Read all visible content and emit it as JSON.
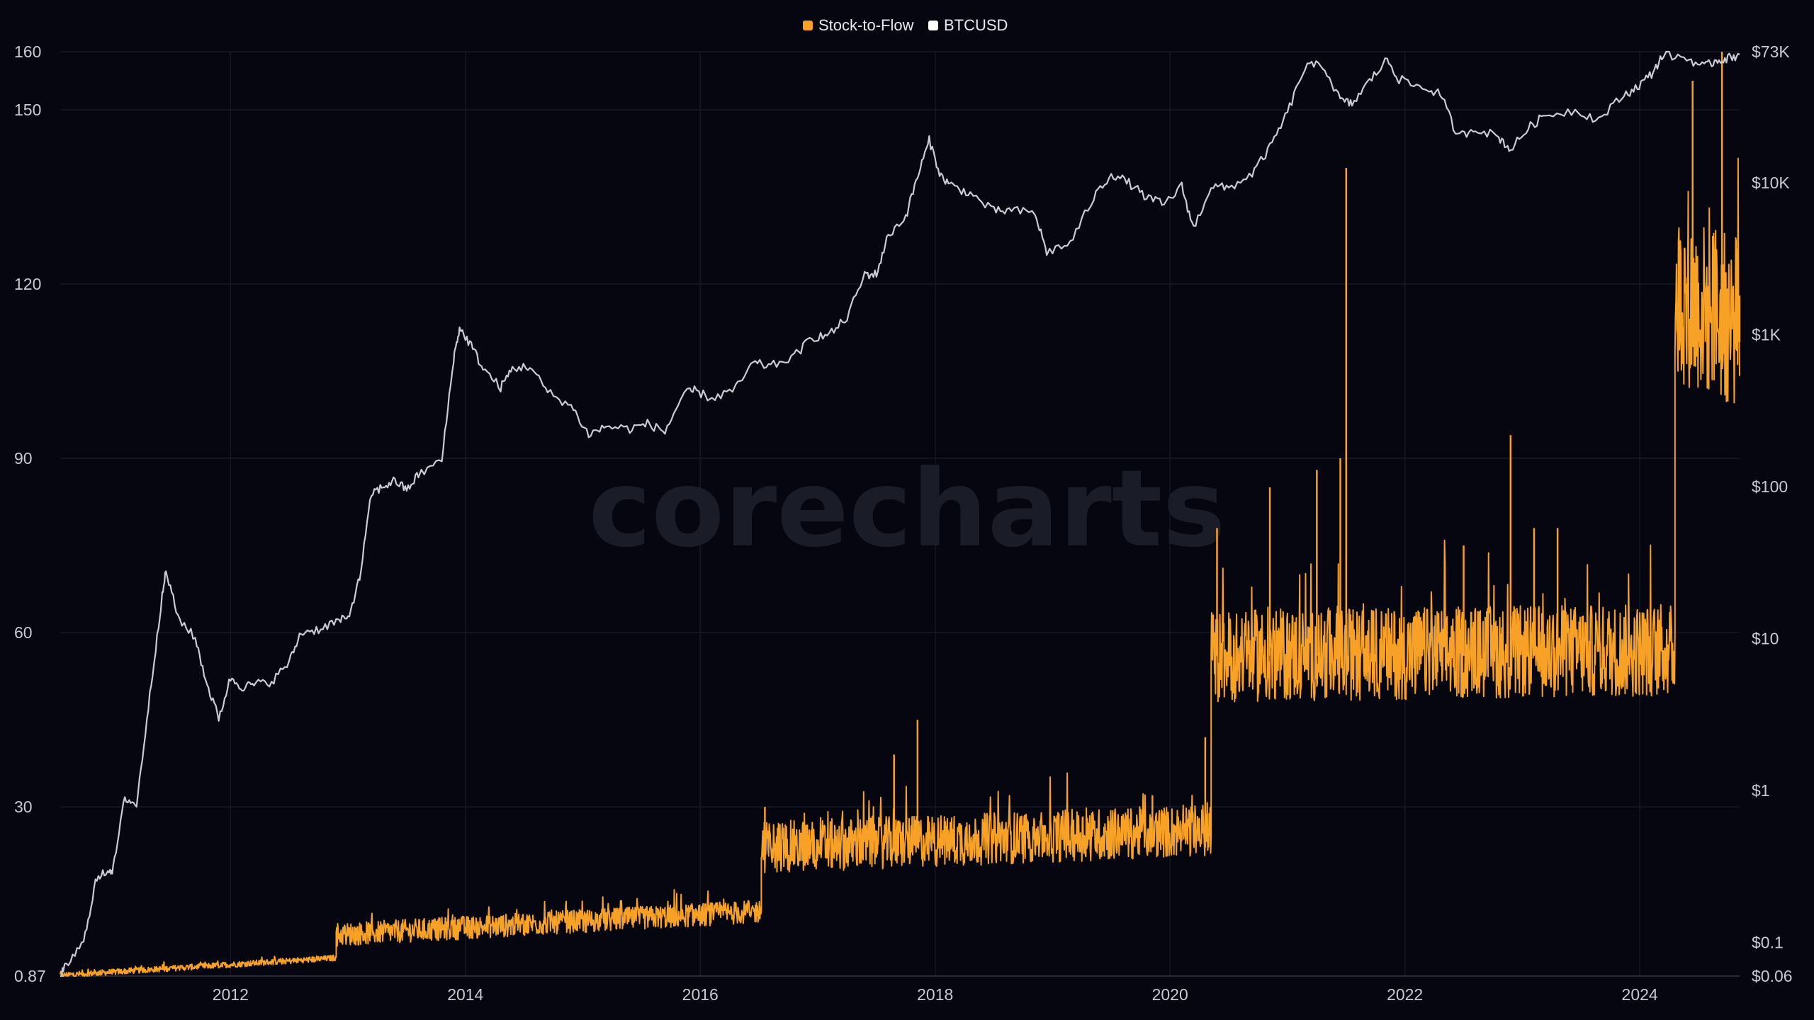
{
  "chart_data": {
    "type": "line",
    "title": "",
    "watermark": "corecharts",
    "legend": {
      "placement": "top-center",
      "items": [
        {
          "label": "Stock-to-Flow",
          "color": "#f7a127"
        },
        {
          "label": "BTCUSD",
          "color": "#ffffff"
        }
      ]
    },
    "x_ticks": [
      "2012",
      "2014",
      "2016",
      "2018",
      "2020",
      "2022",
      "2024"
    ],
    "x_range": [
      2010.55,
      2024.85
    ],
    "y_left": {
      "min": 0.87,
      "max": 160,
      "ticks": [
        {
          "label": "160",
          "v": 160
        },
        {
          "label": "150",
          "v": 150
        },
        {
          "label": "120",
          "v": 120
        },
        {
          "label": "90",
          "v": 90
        },
        {
          "label": "60",
          "v": 60
        },
        {
          "label": "30",
          "v": 30
        },
        {
          "label": "0.87",
          "v": 0.87
        }
      ]
    },
    "y_right": {
      "scale": "log",
      "min": 0.06,
      "max": 73000,
      "ticks": [
        {
          "label": "$73K",
          "v": 73000
        },
        {
          "label": "$10K",
          "v": 10000
        },
        {
          "label": "$1K",
          "v": 1000
        },
        {
          "label": "$100",
          "v": 100
        },
        {
          "label": "$10",
          "v": 10
        },
        {
          "label": "$1",
          "v": 1
        },
        {
          "label": "$0.1",
          "v": 0.1
        },
        {
          "label": "$0.06",
          "v": 0.06
        }
      ]
    },
    "grid": true,
    "series": [
      {
        "name": "BTCUSD",
        "color": "#c9cbd6",
        "axis": "right",
        "points": [
          [
            2010.55,
            0.06
          ],
          [
            2010.6,
            0.07
          ],
          [
            2010.75,
            0.1
          ],
          [
            2010.85,
            0.25
          ],
          [
            2010.95,
            0.3
          ],
          [
            2011.0,
            0.3
          ],
          [
            2011.1,
            0.9
          ],
          [
            2011.2,
            0.8
          ],
          [
            2011.3,
            3.5
          ],
          [
            2011.4,
            15
          ],
          [
            2011.45,
            28
          ],
          [
            2011.55,
            14
          ],
          [
            2011.7,
            10
          ],
          [
            2011.8,
            5
          ],
          [
            2011.9,
            3
          ],
          [
            2012.0,
            5.5
          ],
          [
            2012.1,
            4.8
          ],
          [
            2012.2,
            5
          ],
          [
            2012.35,
            5.2
          ],
          [
            2012.5,
            7
          ],
          [
            2012.6,
            11
          ],
          [
            2012.75,
            11.5
          ],
          [
            2012.9,
            13
          ],
          [
            2013.0,
            13.5
          ],
          [
            2013.1,
            25
          ],
          [
            2013.2,
            90
          ],
          [
            2013.3,
            100
          ],
          [
            2013.4,
            110
          ],
          [
            2013.5,
            95
          ],
          [
            2013.6,
            120
          ],
          [
            2013.8,
            150
          ],
          [
            2013.9,
            700
          ],
          [
            2013.95,
            1100
          ],
          [
            2014.05,
            850
          ],
          [
            2014.15,
            600
          ],
          [
            2014.3,
            450
          ],
          [
            2014.4,
            600
          ],
          [
            2014.55,
            620
          ],
          [
            2014.7,
            420
          ],
          [
            2014.9,
            340
          ],
          [
            2015.05,
            220
          ],
          [
            2015.2,
            250
          ],
          [
            2015.4,
            240
          ],
          [
            2015.55,
            260
          ],
          [
            2015.7,
            230
          ],
          [
            2015.85,
            400
          ],
          [
            2015.95,
            430
          ],
          [
            2016.1,
            380
          ],
          [
            2016.3,
            440
          ],
          [
            2016.45,
            650
          ],
          [
            2016.6,
            620
          ],
          [
            2016.8,
            720
          ],
          [
            2016.95,
            960
          ],
          [
            2017.1,
            1000
          ],
          [
            2017.25,
            1300
          ],
          [
            2017.4,
            2500
          ],
          [
            2017.5,
            2500
          ],
          [
            2017.6,
            4500
          ],
          [
            2017.75,
            6000
          ],
          [
            2017.85,
            11000
          ],
          [
            2017.95,
            19000
          ],
          [
            2018.05,
            11000
          ],
          [
            2018.15,
            9500
          ],
          [
            2018.3,
            8500
          ],
          [
            2018.5,
            6500
          ],
          [
            2018.65,
            6600
          ],
          [
            2018.85,
            6300
          ],
          [
            2018.95,
            3500
          ],
          [
            2019.15,
            4000
          ],
          [
            2019.35,
            8000
          ],
          [
            2019.5,
            11500
          ],
          [
            2019.65,
            10000
          ],
          [
            2019.8,
            8000
          ],
          [
            2019.95,
            7200
          ],
          [
            2020.1,
            9500
          ],
          [
            2020.2,
            5000
          ],
          [
            2020.35,
            9500
          ],
          [
            2020.5,
            9200
          ],
          [
            2020.7,
            11500
          ],
          [
            2020.85,
            17000
          ],
          [
            2021.0,
            29000
          ],
          [
            2021.15,
            58000
          ],
          [
            2021.3,
            60000
          ],
          [
            2021.45,
            35000
          ],
          [
            2021.55,
            33000
          ],
          [
            2021.7,
            47000
          ],
          [
            2021.85,
            65000
          ],
          [
            2021.95,
            48000
          ],
          [
            2022.15,
            42000
          ],
          [
            2022.3,
            39000
          ],
          [
            2022.45,
            20000
          ],
          [
            2022.6,
            23000
          ],
          [
            2022.8,
            20000
          ],
          [
            2022.9,
            16500
          ],
          [
            2023.05,
            23000
          ],
          [
            2023.2,
            28000
          ],
          [
            2023.45,
            30000
          ],
          [
            2023.65,
            26000
          ],
          [
            2023.85,
            37000
          ],
          [
            2023.98,
            43000
          ],
          [
            2024.1,
            52000
          ],
          [
            2024.2,
            70000
          ],
          [
            2024.4,
            66000
          ],
          [
            2024.55,
            58000
          ],
          [
            2024.65,
            64000
          ],
          [
            2024.75,
            66000
          ],
          [
            2024.85,
            70000
          ]
        ]
      },
      {
        "name": "Stock-to-Flow",
        "color": "#f7a127",
        "axis": "left",
        "segments": [
          {
            "x0": 2010.55,
            "x1": 2012.9,
            "v0": 1,
            "v1": 4,
            "jitter": 0.5
          },
          {
            "x0": 2012.9,
            "x1": 2016.52,
            "v0": 8,
            "v1": 12,
            "jitter": 2.0
          },
          {
            "x0": 2016.52,
            "x1": 2020.35,
            "v0": 23,
            "v1": 26,
            "jitter": 4.5
          },
          {
            "x0": 2020.35,
            "x1": 2024.3,
            "v0": 56,
            "v1": 57,
            "jitter": 8
          },
          {
            "x0": 2024.3,
            "x1": 2024.85,
            "v0": 118,
            "v1": 113,
            "jitter": 15
          }
        ],
        "spikes": [
          [
            2016.55,
            30
          ],
          [
            2017.65,
            39
          ],
          [
            2017.85,
            45
          ],
          [
            2019.85,
            32
          ],
          [
            2020.3,
            42
          ],
          [
            2020.4,
            78
          ],
          [
            2020.85,
            85
          ],
          [
            2021.25,
            88
          ],
          [
            2021.5,
            140
          ],
          [
            2021.45,
            90
          ],
          [
            2022.5,
            75
          ],
          [
            2022.9,
            94
          ],
          [
            2023.1,
            78
          ],
          [
            2023.3,
            78
          ],
          [
            2024.45,
            155
          ],
          [
            2024.7,
            160
          ],
          [
            2024.85,
            110
          ]
        ]
      }
    ]
  }
}
